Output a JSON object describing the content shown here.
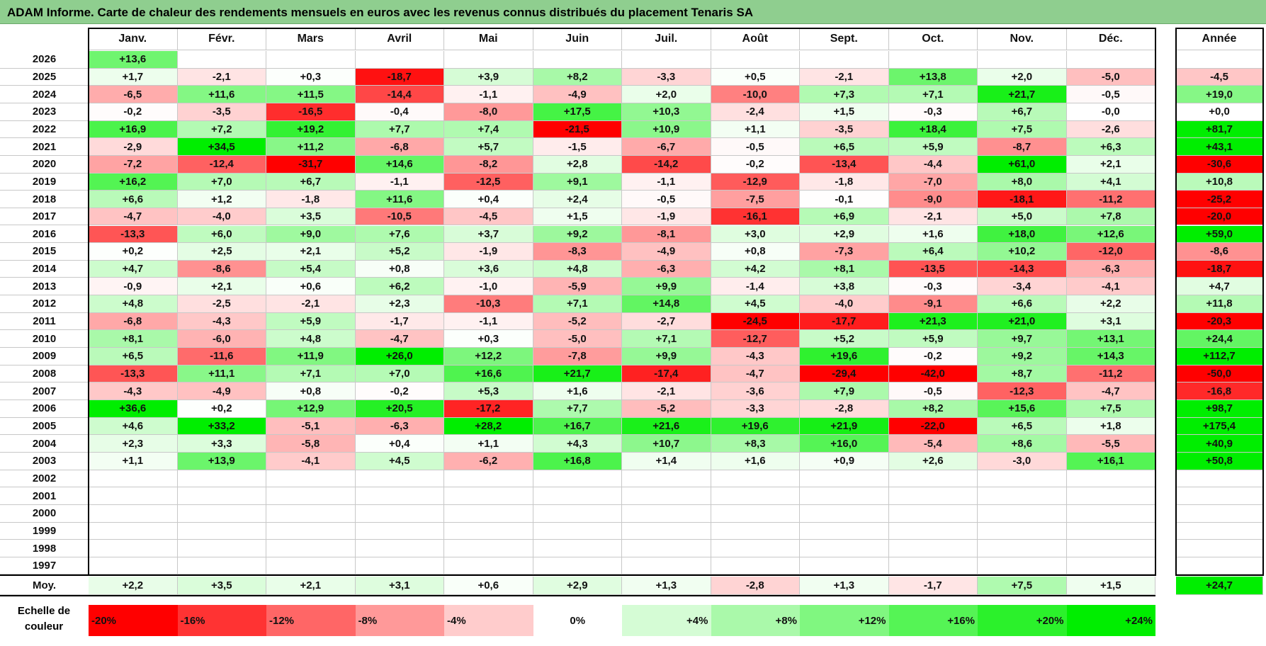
{
  "title": "ADAM Informe. Carte de chaleur des rendements mensuels en euros avec les revenus connus distribués du placement Tenaris SA",
  "year_header": "Année",
  "avg_label": "Moy.",
  "scale_label": "Echelle de couleur",
  "colors": {
    "neg": "#ff0000",
    "zero": "#ffffff",
    "pos": "#00ee00",
    "title_bg": "#8fce8f"
  },
  "chart_data": {
    "type": "heatmap",
    "title": "ADAM Informe. Carte de chaleur des rendements mensuels en euros avec les revenus connus distribués du placement Tenaris SA",
    "months": [
      "Janv.",
      "Févr.",
      "Mars",
      "Avril",
      "Mai",
      "Juin",
      "Juil.",
      "Août",
      "Sept.",
      "Oct.",
      "Nov.",
      "Déc."
    ],
    "rows": [
      {
        "year": "2026",
        "values": [
          "+13,6",
          "",
          "",
          "",
          "",
          "",
          "",
          "",
          "",
          "",
          "",
          ""
        ],
        "annual": ""
      },
      {
        "year": "2025",
        "values": [
          "+1,7",
          "-2,1",
          "+0,3",
          "-18,7",
          "+3,9",
          "+8,2",
          "-3,3",
          "+0,5",
          "-2,1",
          "+13,8",
          "+2,0",
          "-5,0"
        ],
        "annual": "-4,5"
      },
      {
        "year": "2024",
        "values": [
          "-6,5",
          "+11,6",
          "+11,5",
          "-14,4",
          "-1,1",
          "-4,9",
          "+2,0",
          "-10,0",
          "+7,3",
          "+7,1",
          "+21,7",
          "-0,5"
        ],
        "annual": "+19,0"
      },
      {
        "year": "2023",
        "values": [
          "-0,2",
          "-3,5",
          "-16,5",
          "-0,4",
          "-8,0",
          "+17,5",
          "+10,3",
          "-2,4",
          "+1,5",
          "-0,3",
          "+6,7",
          "-0,0"
        ],
        "annual": "+0,0"
      },
      {
        "year": "2022",
        "values": [
          "+16,9",
          "+7,2",
          "+19,2",
          "+7,7",
          "+7,4",
          "-21,5",
          "+10,9",
          "+1,1",
          "-3,5",
          "+18,4",
          "+7,5",
          "-2,6"
        ],
        "annual": "+81,7"
      },
      {
        "year": "2021",
        "values": [
          "-2,9",
          "+34,5",
          "+11,2",
          "-6,8",
          "+5,7",
          "-1,5",
          "-6,7",
          "-0,5",
          "+6,5",
          "+5,9",
          "-8,7",
          "+6,3"
        ],
        "annual": "+43,1"
      },
      {
        "year": "2020",
        "values": [
          "-7,2",
          "-12,4",
          "-31,7",
          "+14,6",
          "-8,2",
          "+2,8",
          "-14,2",
          "-0,2",
          "-13,4",
          "-4,4",
          "+61,0",
          "+2,1"
        ],
        "annual": "-30,6"
      },
      {
        "year": "2019",
        "values": [
          "+16,2",
          "+7,0",
          "+6,7",
          "-1,1",
          "-12,5",
          "+9,1",
          "-1,1",
          "-12,9",
          "-1,8",
          "-7,0",
          "+8,0",
          "+4,1"
        ],
        "annual": "+10,8"
      },
      {
        "year": "2018",
        "values": [
          "+6,6",
          "+1,2",
          "-1,8",
          "+11,6",
          "+0,4",
          "+2,4",
          "-0,5",
          "-7,5",
          "-0,1",
          "-9,0",
          "-18,1",
          "-11,2"
        ],
        "annual": "-25,2"
      },
      {
        "year": "2017",
        "values": [
          "-4,7",
          "-4,0",
          "+3,5",
          "-10,5",
          "-4,5",
          "+1,5",
          "-1,9",
          "-16,1",
          "+6,9",
          "-2,1",
          "+5,0",
          "+7,8"
        ],
        "annual": "-20,0"
      },
      {
        "year": "2016",
        "values": [
          "-13,3",
          "+6,0",
          "+9,0",
          "+7,6",
          "+3,7",
          "+9,2",
          "-8,1",
          "+3,0",
          "+2,9",
          "+1,6",
          "+18,0",
          "+12,6"
        ],
        "annual": "+59,0"
      },
      {
        "year": "2015",
        "values": [
          "+0,2",
          "+2,5",
          "+2,1",
          "+5,2",
          "-1,9",
          "-8,3",
          "-4,9",
          "+0,8",
          "-7,3",
          "+6,4",
          "+10,2",
          "-12,0"
        ],
        "annual": "-8,6"
      },
      {
        "year": "2014",
        "values": [
          "+4,7",
          "-8,6",
          "+5,4",
          "+0,8",
          "+3,6",
          "+4,8",
          "-6,3",
          "+4,2",
          "+8,1",
          "-13,5",
          "-14,3",
          "-6,3"
        ],
        "annual": "-18,7"
      },
      {
        "year": "2013",
        "values": [
          "-0,9",
          "+2,1",
          "+0,6",
          "+6,2",
          "-1,0",
          "-5,9",
          "+9,9",
          "-1,4",
          "+3,8",
          "-0,3",
          "-3,4",
          "-4,1"
        ],
        "annual": "+4,7"
      },
      {
        "year": "2012",
        "values": [
          "+4,8",
          "-2,5",
          "-2,1",
          "+2,3",
          "-10,3",
          "+7,1",
          "+14,8",
          "+4,5",
          "-4,0",
          "-9,1",
          "+6,6",
          "+2,2"
        ],
        "annual": "+11,8"
      },
      {
        "year": "2011",
        "values": [
          "-6,8",
          "-4,3",
          "+5,9",
          "-1,7",
          "-1,1",
          "-5,2",
          "-2,7",
          "-24,5",
          "-17,7",
          "+21,3",
          "+21,0",
          "+3,1"
        ],
        "annual": "-20,3"
      },
      {
        "year": "2010",
        "values": [
          "+8,1",
          "-6,0",
          "+4,8",
          "-4,7",
          "+0,3",
          "-5,0",
          "+7,1",
          "-12,7",
          "+5,2",
          "+5,9",
          "+9,7",
          "+13,1"
        ],
        "annual": "+24,4"
      },
      {
        "year": "2009",
        "values": [
          "+6,5",
          "-11,6",
          "+11,9",
          "+26,0",
          "+12,2",
          "-7,8",
          "+9,9",
          "-4,3",
          "+19,6",
          "-0,2",
          "+9,2",
          "+14,3"
        ],
        "annual": "+112,7"
      },
      {
        "year": "2008",
        "values": [
          "-13,3",
          "+11,1",
          "+7,1",
          "+7,0",
          "+16,6",
          "+21,7",
          "-17,4",
          "-4,7",
          "-29,4",
          "-42,0",
          "+8,7",
          "-11,2"
        ],
        "annual": "-50,0"
      },
      {
        "year": "2007",
        "values": [
          "-4,3",
          "-4,9",
          "+0,8",
          "-0,2",
          "+5,3",
          "+1,6",
          "-2,1",
          "-3,6",
          "+7,9",
          "-0,5",
          "-12,3",
          "-4,7"
        ],
        "annual": "-16,8"
      },
      {
        "year": "2006",
        "values": [
          "+36,6",
          "+0,2",
          "+12,9",
          "+20,5",
          "-17,2",
          "+7,7",
          "-5,2",
          "-3,3",
          "-2,8",
          "+8,2",
          "+15,6",
          "+7,5"
        ],
        "annual": "+98,7"
      },
      {
        "year": "2005",
        "values": [
          "+4,6",
          "+33,2",
          "-5,1",
          "-6,3",
          "+28,2",
          "+16,7",
          "+21,6",
          "+19,6",
          "+21,9",
          "-22,0",
          "+6,5",
          "+1,8"
        ],
        "annual": "+175,4"
      },
      {
        "year": "2004",
        "values": [
          "+2,3",
          "+3,3",
          "-5,8",
          "+0,4",
          "+1,1",
          "+4,3",
          "+10,7",
          "+8,3",
          "+16,0",
          "-5,4",
          "+8,6",
          "-5,5"
        ],
        "annual": "+40,9"
      },
      {
        "year": "2003",
        "values": [
          "+1,1",
          "+13,9",
          "-4,1",
          "+4,5",
          "-6,2",
          "+16,8",
          "+1,4",
          "+1,6",
          "+0,9",
          "+2,6",
          "-3,0",
          "+16,1"
        ],
        "annual": "+50,8"
      },
      {
        "year": "2002",
        "values": [
          "",
          "",
          "",
          "",
          "",
          "",
          "",
          "",
          "",
          "",
          "",
          ""
        ],
        "annual": ""
      },
      {
        "year": "2001",
        "values": [
          "",
          "",
          "",
          "",
          "",
          "",
          "",
          "",
          "",
          "",
          "",
          ""
        ],
        "annual": ""
      },
      {
        "year": "2000",
        "values": [
          "",
          "",
          "",
          "",
          "",
          "",
          "",
          "",
          "",
          "",
          "",
          ""
        ],
        "annual": ""
      },
      {
        "year": "1999",
        "values": [
          "",
          "",
          "",
          "",
          "",
          "",
          "",
          "",
          "",
          "",
          "",
          ""
        ],
        "annual": ""
      },
      {
        "year": "1998",
        "values": [
          "",
          "",
          "",
          "",
          "",
          "",
          "",
          "",
          "",
          "",
          "",
          ""
        ],
        "annual": ""
      },
      {
        "year": "1997",
        "values": [
          "",
          "",
          "",
          "",
          "",
          "",
          "",
          "",
          "",
          "",
          "",
          ""
        ],
        "annual": ""
      }
    ],
    "average": {
      "values": [
        "+2,2",
        "+3,5",
        "+2,1",
        "+3,1",
        "+0,6",
        "+2,9",
        "+1,3",
        "-2,8",
        "+1,3",
        "-1,7",
        "+7,5",
        "+1,5"
      ],
      "annual": "+24,7"
    },
    "scale": [
      "-20%",
      "-16%",
      "-12%",
      "-8%",
      "-4%",
      "0%",
      "+4%",
      "+8%",
      "+12%",
      "+16%",
      "+20%",
      "+24%"
    ]
  }
}
